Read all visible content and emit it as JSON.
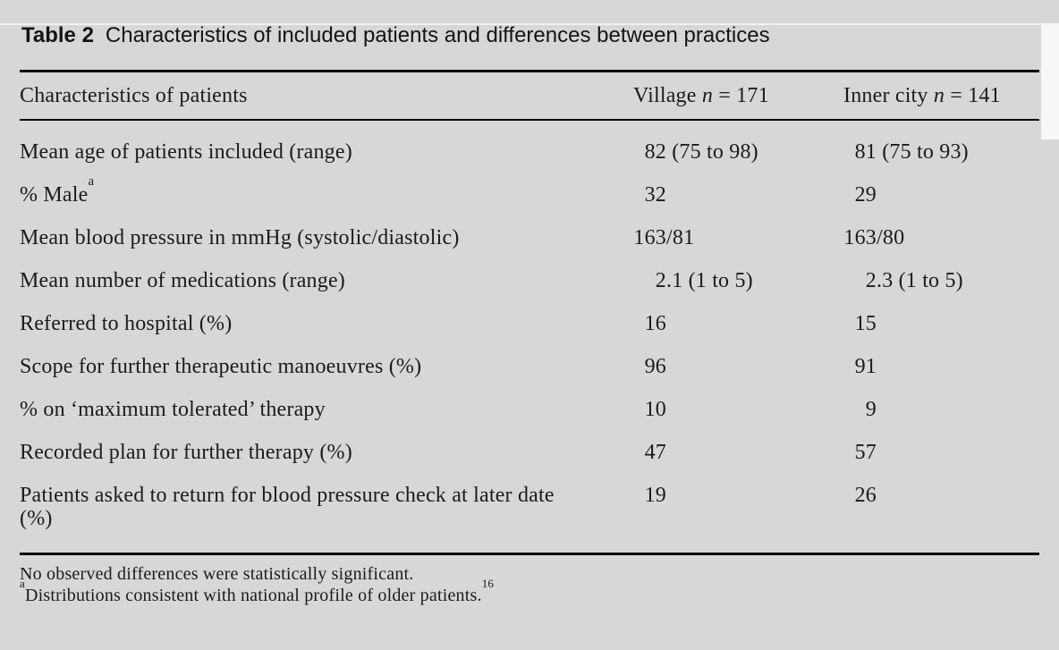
{
  "caption": {
    "label": "Table 2",
    "text": "Characteristics of included patients and differences between practices"
  },
  "table": {
    "header": {
      "col1": "Characteristics of patients",
      "village": {
        "name": "Village",
        "n_symbol": "n",
        "eq": "=",
        "count": "171"
      },
      "inner_city": {
        "name": "Inner city",
        "n_symbol": "n",
        "eq": "=",
        "count": "141"
      }
    },
    "rows": [
      {
        "label": "Mean age of patients included (range)",
        "village": "82 (75 to 98)",
        "inner_city": "81 (75 to 93)"
      },
      {
        "label": "% Male",
        "label_sup": "a",
        "village": "32",
        "inner_city": "29"
      },
      {
        "label": "Mean blood pressure in mmHg (systolic/diastolic)",
        "village": "163/81",
        "inner_city": "163/80"
      },
      {
        "label": "Mean number of medications (range)",
        "village": "2.1 (1 to 5)",
        "inner_city": "2.3 (1 to 5)"
      },
      {
        "label": "Referred to hospital (%)",
        "village": "16",
        "inner_city": "15"
      },
      {
        "label": "Scope for further therapeutic manoeuvres (%)",
        "village": "96",
        "inner_city": "91"
      },
      {
        "label": "% on ‘maximum tolerated’ therapy",
        "village": "10",
        "inner_city": "9"
      },
      {
        "label": "Recorded plan for further therapy (%)",
        "village": "47",
        "inner_city": "57"
      },
      {
        "label": "Patients asked to return for blood pressure check at later date (%)",
        "village": "19",
        "inner_city": "26"
      }
    ],
    "footnotes": [
      {
        "lead_sup": "",
        "text": "No observed differences were statistically significant.",
        "trail_sup": ""
      },
      {
        "lead_sup": "a",
        "text": "Distributions consistent with national profile of older patients.",
        "trail_sup": "16"
      }
    ]
  },
  "colors": {
    "background": "#d7d7d7",
    "text": "#1b1b1b",
    "rule": "#070707"
  }
}
